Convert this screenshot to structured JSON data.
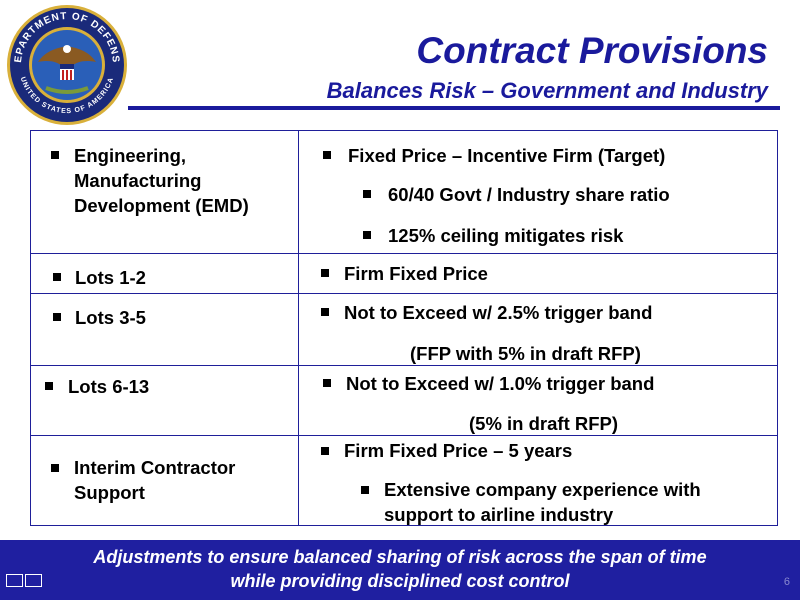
{
  "header": {
    "title": "Contract Provisions",
    "subtitle": "Balances Risk – Government and Industry",
    "seal": {
      "top_text": "DEPARTMENT OF DEFENSE",
      "bottom_text": "UNITED STATES OF AMERICA"
    }
  },
  "rows": {
    "emd": {
      "left": [
        "Engineering,",
        "Manufacturing",
        "Development (EMD)"
      ],
      "main": "Fixed Price – Incentive Firm (Target)",
      "sub1": "60/40 Govt / Industry share ratio",
      "sub2": "125% ceiling mitigates risk"
    },
    "lots12": {
      "left": "Lots 1-2",
      "right": "Firm Fixed Price"
    },
    "lots35": {
      "left": "Lots 3-5",
      "right": "Not to Exceed w/ 2.5% trigger band",
      "note": "(FFP with 5% in draft RFP)"
    },
    "lots613": {
      "left": "Lots 6-13",
      "right": "Not to Exceed w/ 1.0% trigger band",
      "note": "(5% in draft RFP)"
    },
    "ics": {
      "left": [
        "Interim Contractor",
        "Support"
      ],
      "main": "Firm Fixed Price – 5 years",
      "sub": [
        "Extensive company experience with",
        "support to airline industry"
      ]
    }
  },
  "footer": {
    "line1": "Adjustments to ensure balanced sharing of risk across the span of time",
    "line2": "while providing disciplined cost control",
    "page_number": "6"
  },
  "colors": {
    "title": "#1a1a9c",
    "footer_bg": "#1f1fa0",
    "table_border": "#1f1f99"
  }
}
